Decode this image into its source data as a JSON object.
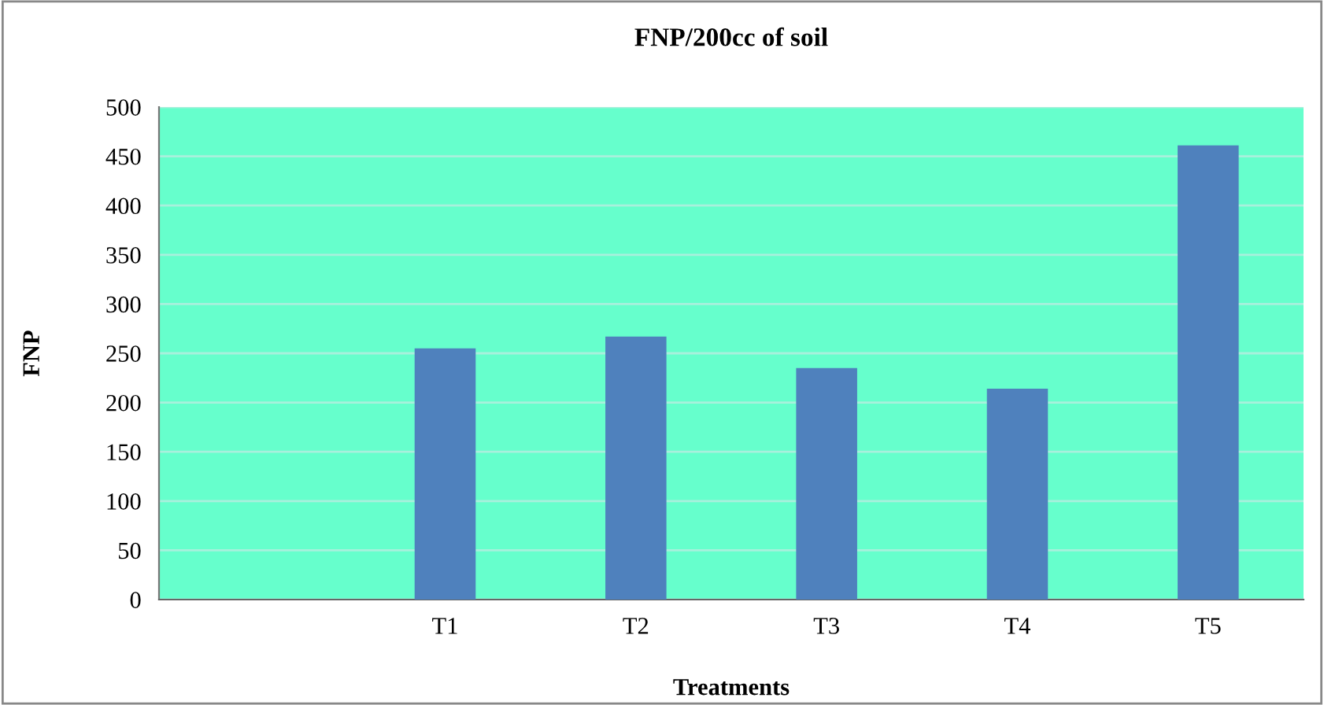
{
  "chart_data": {
    "type": "bar",
    "title": "FNP/200cc of soil",
    "xlabel": "Treatments",
    "ylabel": "FNP",
    "categories": [
      null,
      "T1",
      "T2",
      "T3",
      "T4",
      "T5"
    ],
    "values": [
      null,
      255,
      267,
      235,
      214,
      461
    ],
    "color": "#4f81bd",
    "ylim": [
      0,
      500
    ],
    "yticks": [
      0,
      50,
      100,
      150,
      200,
      250,
      300,
      350,
      400,
      450,
      500
    ],
    "grid": "y",
    "legend": false
  }
}
